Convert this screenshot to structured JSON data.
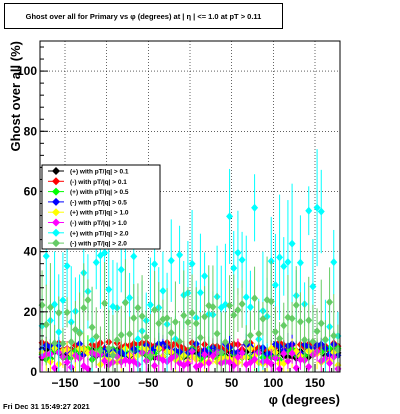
{
  "title": "Ghost over all for Primary vs φ (degrees) at |  η | <= 1.0 at pT > 0.11",
  "footer": "Fri Dec 31 15:49:27 2021",
  "chart_data": {
    "type": "scatter",
    "title": "Ghost over all for Primary vs φ (degrees) at |  η | <= 1.0 at pT > 0.11",
    "xlabel": "φ (degrees)",
    "ylabel": "Ghost over all (%)",
    "xlim": [
      -180,
      180
    ],
    "ylim": [
      0,
      110
    ],
    "xticks": [
      -150,
      -100,
      -50,
      0,
      50,
      100,
      150
    ],
    "xtick_labels": [
      "−150",
      "−100",
      "−50",
      "0",
      "50",
      "100",
      "150"
    ],
    "yticks": [
      0,
      20,
      40,
      60,
      80,
      100
    ],
    "ytick_labels": [
      "0",
      "20",
      "40",
      "60",
      "80",
      "100"
    ],
    "grid": true,
    "legend_position": "left-middle",
    "series": [
      {
        "name": "(+) with pT/|q| > 0.1",
        "color": "#000000",
        "marker": "diamond",
        "level": 6,
        "spread": 1.5,
        "errlen": 2
      },
      {
        "name": "(-) with pT/|q| > 0.1",
        "color": "#ff0000",
        "marker": "diamond",
        "level": 8.5,
        "spread": 1.5,
        "errlen": 2
      },
      {
        "name": "(+) with pT/|q| > 0.5",
        "color": "#00ff00",
        "marker": "diamond",
        "level": 6,
        "spread": 2,
        "errlen": 3
      },
      {
        "name": "(-) with pT/|q| > 0.5",
        "color": "#0000ff",
        "marker": "diamond",
        "level": 7.5,
        "spread": 2,
        "errlen": 3
      },
      {
        "name": "(+) with pT/|q| > 1.0",
        "color": "#ffff00",
        "marker": "diamond",
        "level": 5,
        "spread": 3,
        "errlen": 4
      },
      {
        "name": "(-) with pT/|q| > 1.0",
        "color": "#ff00ff",
        "marker": "diamond",
        "level": 4,
        "spread": 3,
        "errlen": 4
      },
      {
        "name": "(+) with pT/|q| > 2.0",
        "color": "#00ffff",
        "marker": "diamond",
        "level": 25,
        "spread": 15,
        "errlen": 14
      },
      {
        "name": "(-) with pT/|q| > 2.0",
        "color": "#66cc66",
        "marker": "diamond",
        "level": 15,
        "spread": 10,
        "errlen": 10
      }
    ]
  }
}
